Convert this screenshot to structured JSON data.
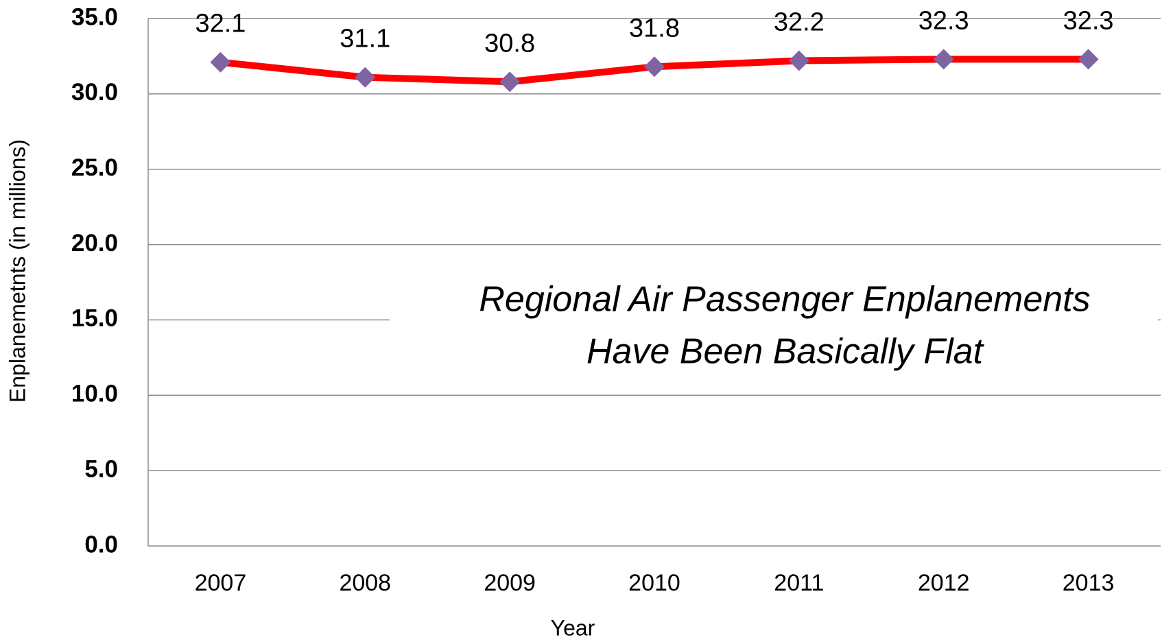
{
  "chart_data": {
    "type": "line",
    "annotation": [
      "Regional Air Passenger Enplanements",
      "Have Been Basically Flat"
    ],
    "x_label": "Year",
    "y_label": "Enplanemetnts (in millions)",
    "categories": [
      "2007",
      "2008",
      "2009",
      "2010",
      "2011",
      "2012",
      "2013"
    ],
    "values": [
      32.1,
      31.1,
      30.8,
      31.8,
      32.2,
      32.3,
      32.3
    ],
    "color": "#ff0000",
    "marker_color": "#8064a2",
    "ylim": [
      0,
      35
    ],
    "yticks": [
      {
        "value": 0,
        "label": "0.0"
      },
      {
        "value": 5,
        "label": "5.0"
      },
      {
        "value": 10,
        "label": "10.0"
      },
      {
        "value": 15,
        "label": "15.0"
      },
      {
        "value": 20,
        "label": "20.0"
      },
      {
        "value": 25,
        "label": "25.0"
      },
      {
        "value": 30,
        "label": "30.0"
      },
      {
        "value": 35,
        "label": "35.0"
      }
    ],
    "grid": true
  }
}
